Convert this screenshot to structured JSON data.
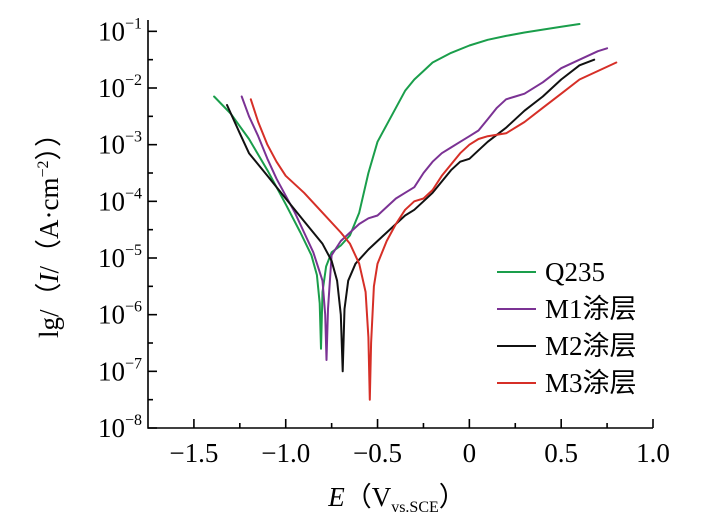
{
  "chart_data": {
    "type": "line",
    "xlabel": {
      "var": "E",
      "open": "（",
      "unit": "V",
      "sub": "vs.SCE",
      "close": "）"
    },
    "ylabel": {
      "prefix": "lg/（",
      "var": "I",
      "sep": "/（",
      "unit": "A·cm",
      "sup": "−2",
      "close": "））"
    },
    "xlim": [
      -1.75,
      1.0
    ],
    "ylim": [
      -8,
      -0.8
    ],
    "x_ticks": [
      -1.5,
      -1.0,
      -0.5,
      0,
      0.5,
      1.0
    ],
    "x_tick_labels": [
      "−1.5",
      "−1.0",
      "−0.5",
      "0",
      "0.5",
      "1.0"
    ],
    "y_ticks": [
      -8,
      -7,
      -6,
      -5,
      -4,
      -3,
      -2,
      -1
    ],
    "y_tick_base": "10",
    "y_tick_exponents": [
      "−8",
      "−7",
      "−6",
      "−5",
      "−4",
      "−3",
      "−2",
      "−1"
    ],
    "grid": false,
    "legend_position": "bottom-right",
    "series": [
      {
        "name": "Q235",
        "color": "#1a9e4b",
        "points": [
          [
            -1.39,
            -2.15
          ],
          [
            -1.3,
            -2.45
          ],
          [
            -1.2,
            -2.9
          ],
          [
            -1.1,
            -3.45
          ],
          [
            -1.0,
            -4.05
          ],
          [
            -0.92,
            -4.55
          ],
          [
            -0.86,
            -4.95
          ],
          [
            -0.83,
            -5.3
          ],
          [
            -0.815,
            -5.8
          ],
          [
            -0.808,
            -6.6
          ],
          [
            -0.8,
            -5.6
          ],
          [
            -0.78,
            -5.15
          ],
          [
            -0.75,
            -4.9
          ],
          [
            -0.7,
            -4.78
          ],
          [
            -0.65,
            -4.6
          ],
          [
            -0.6,
            -4.2
          ],
          [
            -0.55,
            -3.5
          ],
          [
            -0.5,
            -2.95
          ],
          [
            -0.45,
            -2.65
          ],
          [
            -0.4,
            -2.35
          ],
          [
            -0.35,
            -2.05
          ],
          [
            -0.3,
            -1.85
          ],
          [
            -0.25,
            -1.7
          ],
          [
            -0.2,
            -1.55
          ],
          [
            -0.1,
            -1.38
          ],
          [
            0.0,
            -1.25
          ],
          [
            0.1,
            -1.15
          ],
          [
            0.2,
            -1.08
          ],
          [
            0.3,
            -1.02
          ],
          [
            0.4,
            -0.97
          ],
          [
            0.5,
            -0.92
          ],
          [
            0.6,
            -0.87
          ]
        ]
      },
      {
        "name": "M1涂层",
        "color": "#7b3294",
        "points": [
          [
            -1.24,
            -2.15
          ],
          [
            -1.2,
            -2.5
          ],
          [
            -1.15,
            -2.85
          ],
          [
            -1.1,
            -3.25
          ],
          [
            -1.05,
            -3.6
          ],
          [
            -1.0,
            -3.9
          ],
          [
            -0.95,
            -4.2
          ],
          [
            -0.9,
            -4.55
          ],
          [
            -0.85,
            -4.9
          ],
          [
            -0.8,
            -5.4
          ],
          [
            -0.785,
            -6.0
          ],
          [
            -0.778,
            -6.8
          ],
          [
            -0.77,
            -5.9
          ],
          [
            -0.75,
            -4.95
          ],
          [
            -0.7,
            -4.7
          ],
          [
            -0.65,
            -4.55
          ],
          [
            -0.6,
            -4.4
          ],
          [
            -0.55,
            -4.3
          ],
          [
            -0.5,
            -4.25
          ],
          [
            -0.45,
            -4.1
          ],
          [
            -0.4,
            -3.95
          ],
          [
            -0.35,
            -3.85
          ],
          [
            -0.3,
            -3.75
          ],
          [
            -0.25,
            -3.5
          ],
          [
            -0.2,
            -3.3
          ],
          [
            -0.15,
            -3.15
          ],
          [
            -0.1,
            -3.05
          ],
          [
            -0.05,
            -2.95
          ],
          [
            0.0,
            -2.85
          ],
          [
            0.05,
            -2.75
          ],
          [
            0.1,
            -2.55
          ],
          [
            0.15,
            -2.35
          ],
          [
            0.2,
            -2.2
          ],
          [
            0.25,
            -2.15
          ],
          [
            0.3,
            -2.1
          ],
          [
            0.4,
            -1.9
          ],
          [
            0.5,
            -1.65
          ],
          [
            0.6,
            -1.5
          ],
          [
            0.7,
            -1.35
          ],
          [
            0.75,
            -1.3
          ]
        ]
      },
      {
        "name": "M2涂层",
        "color": "#111111",
        "points": [
          [
            -1.32,
            -2.3
          ],
          [
            -1.25,
            -2.8
          ],
          [
            -1.2,
            -3.15
          ],
          [
            -1.1,
            -3.55
          ],
          [
            -1.0,
            -3.95
          ],
          [
            -0.9,
            -4.35
          ],
          [
            -0.8,
            -4.75
          ],
          [
            -0.75,
            -5.05
          ],
          [
            -0.72,
            -5.4
          ],
          [
            -0.7,
            -6.0
          ],
          [
            -0.69,
            -7.0
          ],
          [
            -0.68,
            -5.9
          ],
          [
            -0.66,
            -5.4
          ],
          [
            -0.62,
            -5.1
          ],
          [
            -0.55,
            -4.85
          ],
          [
            -0.5,
            -4.7
          ],
          [
            -0.45,
            -4.55
          ],
          [
            -0.4,
            -4.4
          ],
          [
            -0.35,
            -4.25
          ],
          [
            -0.3,
            -4.15
          ],
          [
            -0.25,
            -4.0
          ],
          [
            -0.2,
            -3.85
          ],
          [
            -0.15,
            -3.65
          ],
          [
            -0.1,
            -3.45
          ],
          [
            -0.05,
            -3.3
          ],
          [
            0.0,
            -3.25
          ],
          [
            0.05,
            -3.1
          ],
          [
            0.1,
            -2.95
          ],
          [
            0.2,
            -2.7
          ],
          [
            0.3,
            -2.4
          ],
          [
            0.4,
            -2.15
          ],
          [
            0.5,
            -1.85
          ],
          [
            0.6,
            -1.6
          ],
          [
            0.68,
            -1.5
          ]
        ]
      },
      {
        "name": "M3涂层",
        "color": "#d62f27",
        "points": [
          [
            -1.19,
            -2.2
          ],
          [
            -1.15,
            -2.6
          ],
          [
            -1.1,
            -3.0
          ],
          [
            -1.05,
            -3.3
          ],
          [
            -1.0,
            -3.55
          ],
          [
            -0.9,
            -3.85
          ],
          [
            -0.8,
            -4.2
          ],
          [
            -0.7,
            -4.55
          ],
          [
            -0.65,
            -4.75
          ],
          [
            -0.6,
            -5.1
          ],
          [
            -0.565,
            -5.6
          ],
          [
            -0.55,
            -6.4
          ],
          [
            -0.542,
            -7.5
          ],
          [
            -0.535,
            -6.5
          ],
          [
            -0.52,
            -5.5
          ],
          [
            -0.5,
            -5.1
          ],
          [
            -0.45,
            -4.7
          ],
          [
            -0.4,
            -4.4
          ],
          [
            -0.35,
            -4.15
          ],
          [
            -0.3,
            -4.0
          ],
          [
            -0.25,
            -3.95
          ],
          [
            -0.2,
            -3.8
          ],
          [
            -0.15,
            -3.55
          ],
          [
            -0.1,
            -3.35
          ],
          [
            -0.05,
            -3.15
          ],
          [
            0.0,
            -3.0
          ],
          [
            0.05,
            -2.9
          ],
          [
            0.1,
            -2.85
          ],
          [
            0.2,
            -2.8
          ],
          [
            0.3,
            -2.6
          ],
          [
            0.4,
            -2.35
          ],
          [
            0.5,
            -2.1
          ],
          [
            0.6,
            -1.85
          ],
          [
            0.7,
            -1.7
          ],
          [
            0.8,
            -1.55
          ]
        ]
      }
    ]
  }
}
